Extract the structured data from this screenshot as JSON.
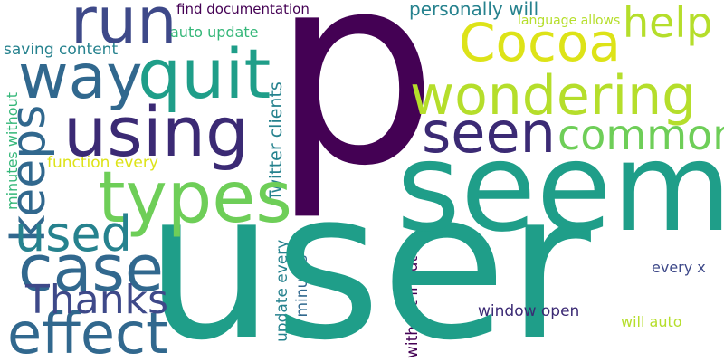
{
  "colors": {
    "background": "#ffffff",
    "dark_purple": "#440154",
    "indigo": "#3b2a74",
    "blue": "#3e4989",
    "steel_blue": "#31688e",
    "teal": "#26828e",
    "green_teal": "#1f9e89",
    "green": "#35b779",
    "light_green": "#6ece58",
    "lime": "#b5de2b",
    "yellow": "#dde318"
  },
  "words": {
    "p": "p",
    "user": "user",
    "seem": "seem",
    "wondering": "wondering",
    "cocoa": "Cocoa",
    "using": "using",
    "types": "types",
    "quit": "quit",
    "way": "way",
    "case": "case",
    "run": "run",
    "seen": "seen",
    "effect": "effect",
    "common": "common",
    "keeps": "keeps",
    "used": "used",
    "thanks": "Thanks",
    "help": "help",
    "personally_will": "personally will",
    "twitter_clients": "Twitter clients",
    "function_every": "function every",
    "saving_content": "saving content",
    "auto_update": "auto update",
    "find_documentation": "find documentation",
    "language_allows": "language allows",
    "minutes_without": "minutes without",
    "update_every": "update every",
    "x_minutes": "x minutes",
    "without_input": "without input",
    "window_open": "window open",
    "every_x": "every x",
    "will_auto": "will auto"
  }
}
